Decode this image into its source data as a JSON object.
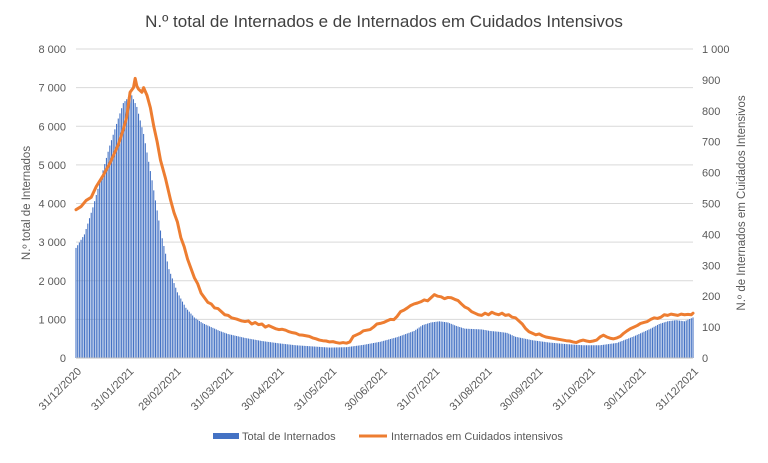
{
  "chart_data": {
    "type": "bar+line",
    "title": "N.º total de  Internados e de Internados em Cuidados Intensivos",
    "ylabel_left": "N.º total de Internados",
    "ylabel_right": "N.º de Internados em Cuidados Intensivos",
    "ylim_left": [
      0,
      8000
    ],
    "ylim_right": [
      0,
      1000
    ],
    "yticks_left": [
      "0",
      "1 000",
      "2 000",
      "3 000",
      "4 000",
      "5 000",
      "6 000",
      "7 000",
      "8 000"
    ],
    "yticks_right": [
      "0",
      "100",
      "200",
      "300",
      "400",
      "500",
      "600",
      "700",
      "800",
      "900",
      "1 000"
    ],
    "x_start_day": 0,
    "x_end_day": 365,
    "xticks": [
      {
        "day": 0,
        "label": "31/12/2020"
      },
      {
        "day": 31,
        "label": "31/01/2021"
      },
      {
        "day": 59,
        "label": "28/02/2021"
      },
      {
        "day": 90,
        "label": "31/03/2021"
      },
      {
        "day": 120,
        "label": "30/04/2021"
      },
      {
        "day": 151,
        "label": "31/05/2021"
      },
      {
        "day": 181,
        "label": "30/06/2021"
      },
      {
        "day": 212,
        "label": "31/07/2021"
      },
      {
        "day": 243,
        "label": "31/08/2021"
      },
      {
        "day": 273,
        "label": "30/09/2021"
      },
      {
        "day": 304,
        "label": "31/10/2021"
      },
      {
        "day": 334,
        "label": "30/11/2021"
      },
      {
        "day": 365,
        "label": "31/12/2021"
      }
    ],
    "series": [
      {
        "name": "Total de Internados",
        "kind": "bar",
        "axis": "left",
        "color": "#4472C4",
        "points": [
          [
            0,
            2850
          ],
          [
            5,
            3200
          ],
          [
            10,
            3900
          ],
          [
            15,
            4700
          ],
          [
            20,
            5500
          ],
          [
            25,
            6200
          ],
          [
            28,
            6600
          ],
          [
            31,
            6750
          ],
          [
            33,
            6800
          ],
          [
            36,
            6500
          ],
          [
            40,
            5800
          ],
          [
            45,
            4600
          ],
          [
            50,
            3300
          ],
          [
            55,
            2300
          ],
          [
            60,
            1700
          ],
          [
            65,
            1300
          ],
          [
            70,
            1050
          ],
          [
            75,
            900
          ],
          [
            80,
            800
          ],
          [
            85,
            700
          ],
          [
            90,
            620
          ],
          [
            95,
            570
          ],
          [
            100,
            520
          ],
          [
            110,
            440
          ],
          [
            120,
            380
          ],
          [
            130,
            330
          ],
          [
            140,
            300
          ],
          [
            150,
            270
          ],
          [
            160,
            280
          ],
          [
            170,
            340
          ],
          [
            180,
            420
          ],
          [
            190,
            540
          ],
          [
            200,
            700
          ],
          [
            205,
            850
          ],
          [
            210,
            920
          ],
          [
            215,
            950
          ],
          [
            220,
            920
          ],
          [
            225,
            830
          ],
          [
            230,
            760
          ],
          [
            240,
            740
          ],
          [
            245,
            700
          ],
          [
            250,
            680
          ],
          [
            255,
            650
          ],
          [
            260,
            550
          ],
          [
            270,
            460
          ],
          [
            280,
            400
          ],
          [
            290,
            360
          ],
          [
            300,
            330
          ],
          [
            310,
            330
          ],
          [
            320,
            390
          ],
          [
            330,
            560
          ],
          [
            340,
            760
          ],
          [
            345,
            880
          ],
          [
            350,
            950
          ],
          [
            355,
            980
          ],
          [
            360,
            950
          ],
          [
            365,
            1050
          ]
        ]
      },
      {
        "name": "Internados em Cuidados intensivos",
        "kind": "line",
        "axis": "right",
        "color": "#ED7D31",
        "points": [
          [
            0,
            480
          ],
          [
            3,
            490
          ],
          [
            6,
            510
          ],
          [
            9,
            520
          ],
          [
            12,
            555
          ],
          [
            16,
            590
          ],
          [
            20,
            630
          ],
          [
            25,
            690
          ],
          [
            28,
            740
          ],
          [
            30,
            780
          ],
          [
            32,
            860
          ],
          [
            34,
            875
          ],
          [
            35,
            905
          ],
          [
            36,
            880
          ],
          [
            37,
            870
          ],
          [
            39,
            860
          ],
          [
            40,
            875
          ],
          [
            42,
            850
          ],
          [
            44,
            810
          ],
          [
            46,
            750
          ],
          [
            48,
            700
          ],
          [
            50,
            640
          ],
          [
            53,
            580
          ],
          [
            56,
            510
          ],
          [
            58,
            470
          ],
          [
            60,
            440
          ],
          [
            62,
            390
          ],
          [
            64,
            360
          ],
          [
            66,
            320
          ],
          [
            68,
            290
          ],
          [
            70,
            260
          ],
          [
            72,
            240
          ],
          [
            74,
            210
          ],
          [
            76,
            195
          ],
          [
            78,
            180
          ],
          [
            80,
            175
          ],
          [
            82,
            162
          ],
          [
            84,
            160
          ],
          [
            86,
            150
          ],
          [
            88,
            140
          ],
          [
            90,
            138
          ],
          [
            92,
            130
          ],
          [
            95,
            126
          ],
          [
            98,
            120
          ],
          [
            100,
            118
          ],
          [
            102,
            120
          ],
          [
            104,
            110
          ],
          [
            106,
            115
          ],
          [
            108,
            108
          ],
          [
            110,
            110
          ],
          [
            112,
            100
          ],
          [
            114,
            105
          ],
          [
            116,
            100
          ],
          [
            118,
            95
          ],
          [
            120,
            92
          ],
          [
            122,
            93
          ],
          [
            124,
            90
          ],
          [
            126,
            85
          ],
          [
            128,
            82
          ],
          [
            130,
            80
          ],
          [
            132,
            75
          ],
          [
            134,
            74
          ],
          [
            136,
            72
          ],
          [
            138,
            70
          ],
          [
            140,
            65
          ],
          [
            142,
            62
          ],
          [
            144,
            58
          ],
          [
            146,
            56
          ],
          [
            148,
            55
          ],
          [
            150,
            52
          ],
          [
            152,
            53
          ],
          [
            154,
            50
          ],
          [
            156,
            48
          ],
          [
            158,
            50
          ],
          [
            160,
            48
          ],
          [
            162,
            52
          ],
          [
            164,
            70
          ],
          [
            166,
            75
          ],
          [
            168,
            80
          ],
          [
            170,
            88
          ],
          [
            172,
            90
          ],
          [
            174,
            92
          ],
          [
            176,
            100
          ],
          [
            178,
            110
          ],
          [
            180,
            112
          ],
          [
            182,
            115
          ],
          [
            184,
            120
          ],
          [
            186,
            125
          ],
          [
            188,
            124
          ],
          [
            190,
            135
          ],
          [
            192,
            150
          ],
          [
            194,
            155
          ],
          [
            196,
            162
          ],
          [
            198,
            170
          ],
          [
            200,
            175
          ],
          [
            202,
            178
          ],
          [
            204,
            182
          ],
          [
            206,
            188
          ],
          [
            208,
            185
          ],
          [
            210,
            195
          ],
          [
            212,
            205
          ],
          [
            214,
            200
          ],
          [
            216,
            198
          ],
          [
            218,
            192
          ],
          [
            220,
            196
          ],
          [
            222,
            195
          ],
          [
            224,
            190
          ],
          [
            226,
            186
          ],
          [
            228,
            175
          ],
          [
            230,
            165
          ],
          [
            232,
            160
          ],
          [
            234,
            150
          ],
          [
            236,
            145
          ],
          [
            238,
            140
          ],
          [
            240,
            138
          ],
          [
            242,
            145
          ],
          [
            244,
            140
          ],
          [
            246,
            148
          ],
          [
            248,
            143
          ],
          [
            250,
            140
          ],
          [
            252,
            145
          ],
          [
            254,
            138
          ],
          [
            256,
            140
          ],
          [
            258,
            132
          ],
          [
            260,
            130
          ],
          [
            262,
            120
          ],
          [
            264,
            110
          ],
          [
            266,
            95
          ],
          [
            268,
            85
          ],
          [
            270,
            80
          ],
          [
            272,
            75
          ],
          [
            274,
            78
          ],
          [
            276,
            72
          ],
          [
            278,
            68
          ],
          [
            280,
            66
          ],
          [
            282,
            64
          ],
          [
            284,
            62
          ],
          [
            286,
            60
          ],
          [
            288,
            58
          ],
          [
            290,
            56
          ],
          [
            292,
            55
          ],
          [
            294,
            52
          ],
          [
            296,
            50
          ],
          [
            298,
            55
          ],
          [
            300,
            58
          ],
          [
            302,
            55
          ],
          [
            304,
            53
          ],
          [
            306,
            55
          ],
          [
            308,
            58
          ],
          [
            310,
            68
          ],
          [
            312,
            74
          ],
          [
            314,
            68
          ],
          [
            316,
            64
          ],
          [
            318,
            62
          ],
          [
            320,
            65
          ],
          [
            322,
            70
          ],
          [
            324,
            80
          ],
          [
            326,
            88
          ],
          [
            328,
            95
          ],
          [
            330,
            100
          ],
          [
            332,
            105
          ],
          [
            334,
            112
          ],
          [
            336,
            115
          ],
          [
            338,
            118
          ],
          [
            340,
            125
          ],
          [
            342,
            130
          ],
          [
            344,
            128
          ],
          [
            346,
            132
          ],
          [
            348,
            140
          ],
          [
            350,
            138
          ],
          [
            352,
            142
          ],
          [
            354,
            140
          ],
          [
            356,
            138
          ],
          [
            358,
            142
          ],
          [
            360,
            140
          ],
          [
            362,
            141
          ],
          [
            364,
            140
          ],
          [
            365,
            145
          ]
        ]
      }
    ],
    "legend": {
      "placement": "bottom",
      "items": [
        {
          "label": "Total de Internados",
          "color": "#4472C4",
          "kind": "bar"
        },
        {
          "label": "Internados em Cuidados intensivos",
          "color": "#ED7D31",
          "kind": "line"
        }
      ]
    }
  }
}
